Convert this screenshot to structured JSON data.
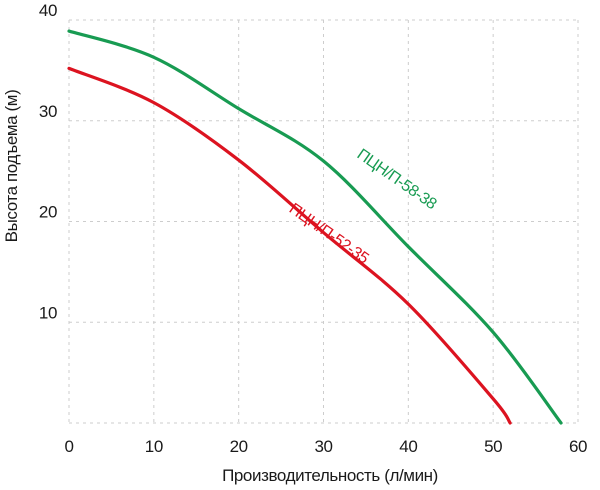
{
  "chart_data": {
    "type": "line",
    "title": "",
    "xlabel": "Производительность (л/мин)",
    "ylabel": "Высота подъема (м)",
    "xlim": [
      0,
      60
    ],
    "ylim": [
      0,
      40
    ],
    "x_ticks": [
      0,
      10,
      20,
      30,
      40,
      50,
      60
    ],
    "y_ticks": [
      10,
      20,
      30,
      40
    ],
    "grid": "dashed",
    "legend_position": "inline-curve-labels",
    "series": [
      {
        "name": "ПЦН/П-58-38",
        "color": "#189b52",
        "x": [
          0,
          10,
          20,
          30,
          40,
          50,
          58
        ],
        "y": [
          38.9,
          36.3,
          31.2,
          26.0,
          17.5,
          9.0,
          0
        ],
        "label_anchor": {
          "x": 38.3,
          "y": 23.8,
          "angle": 35
        }
      },
      {
        "name": "ПЦН/П-52-35",
        "color": "#dc1320",
        "x": [
          0,
          10,
          20,
          30,
          40,
          50,
          52
        ],
        "y": [
          35.2,
          31.8,
          26.1,
          18.9,
          11.8,
          2.4,
          0
        ],
        "label_anchor": {
          "x": 30.3,
          "y": 18.4,
          "angle": 35
        }
      }
    ]
  },
  "colors": {
    "background": "#ffffff",
    "grid": "#cdcdcd",
    "text": "#1a1a1a"
  }
}
